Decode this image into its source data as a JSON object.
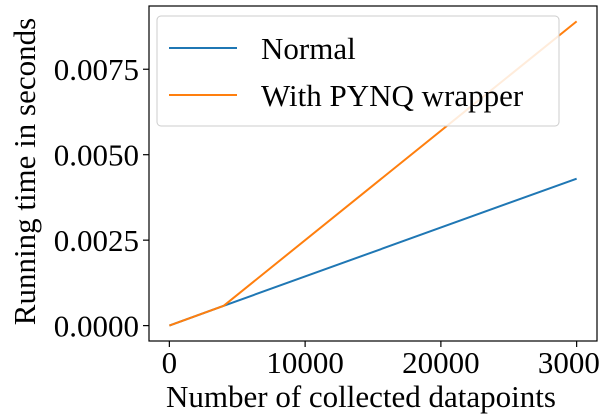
{
  "chart_data": {
    "type": "line",
    "title": "",
    "xlabel": "Number of collected datapoints",
    "ylabel": "Running time in seconds",
    "xlim": [
      -1500,
      31500
    ],
    "ylim": [
      -0.00045,
      0.00935
    ],
    "xticks": [
      0,
      10000,
      20000,
      30000
    ],
    "xtick_labels": [
      "0",
      "10000",
      "20000",
      "30000"
    ],
    "yticks": [
      0.0,
      0.0025,
      0.005,
      0.0075
    ],
    "ytick_labels": [
      "0.0000",
      "0.0025",
      "0.0050",
      "0.0075"
    ],
    "grid": false,
    "legend_position": "upper-left",
    "series": [
      {
        "name": "Normal",
        "color": "#1f77b4",
        "x": [
          0,
          4000,
          30000
        ],
        "y": [
          0.0,
          0.00058,
          0.0043
        ]
      },
      {
        "name": "With PYNQ wrapper",
        "color": "#ff7f0e",
        "x": [
          0,
          4000,
          30000
        ],
        "y": [
          0.0,
          0.00058,
          0.0089
        ]
      }
    ]
  }
}
